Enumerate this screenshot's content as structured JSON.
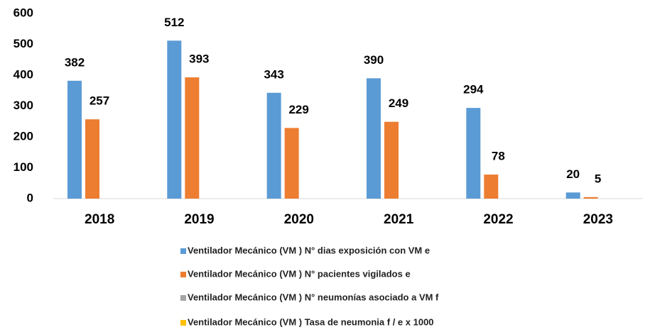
{
  "chart_data": {
    "type": "bar",
    "categories": [
      "2018",
      "2019",
      "2020",
      "2021",
      "2022",
      "2023"
    ],
    "series": [
      {
        "name": "Ventilador Mecánico (VM ) N° dias exposición con VM e",
        "color": "#5b9bd5",
        "values": [
          382,
          512,
          343,
          390,
          294,
          20
        ]
      },
      {
        "name": "Ventilador Mecánico (VM ) N° pacientes vigilados e",
        "color": "#ed7d31",
        "values": [
          257,
          393,
          229,
          249,
          78,
          5
        ]
      },
      {
        "name": "Ventilador Mecánico (VM ) N° neumonías asociado a VM f",
        "color": "#a5a5a5",
        "values": [
          null,
          null,
          null,
          null,
          null,
          null
        ]
      },
      {
        "name": "Ventilador Mecánico (VM ) Tasa de neumonia f / e x 1000",
        "color": "#ffc000",
        "values": [
          null,
          null,
          null,
          null,
          null,
          null
        ]
      }
    ],
    "ylim": [
      0,
      600
    ],
    "yticks": [
      0,
      100,
      200,
      300,
      400,
      500,
      600
    ],
    "grid": false,
    "legend": "bottom"
  }
}
